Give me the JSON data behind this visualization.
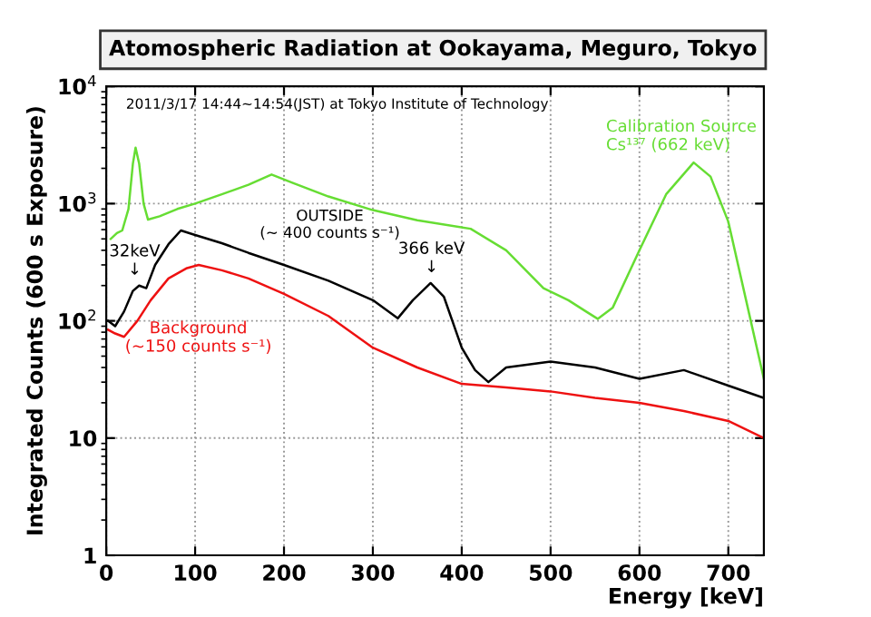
{
  "chart_data": {
    "type": "line",
    "title": "Atomospheric Radiation at Ookayama, Meguro, Tokyo",
    "xlabel": "Energy [keV]",
    "ylabel": "Integrated Counts (600 s Exposure)",
    "annotations": [
      "2011/3/17 14:44~14:54(JST) at Tokyo Institute of Technology",
      {
        "text": "32keV\n↓",
        "x": 32,
        "y": 200
      },
      {
        "text": "366 keV\n↓",
        "x": 366,
        "y": 210
      }
    ],
    "series": [
      {
        "name": "Calibration Source\nCs¹³⁷ (662 keV)",
        "color": "#66dd33",
        "x": [
          5,
          12,
          18,
          25,
          30,
          33,
          37,
          42,
          47,
          60,
          80,
          100,
          130,
          160,
          186,
          210,
          250,
          300,
          350,
          410,
          450,
          492,
          520,
          540,
          553,
          570,
          600,
          630,
          661,
          680,
          700,
          720,
          740
        ],
        "values": [
          500,
          560,
          590,
          900,
          2200,
          3000,
          2200,
          1000,
          730,
          780,
          900,
          1000,
          1200,
          1450,
          1770,
          1500,
          1150,
          880,
          720,
          610,
          400,
          190,
          150,
          120,
          104,
          130,
          400,
          1200,
          2240,
          1700,
          700,
          150,
          32
        ]
      },
      {
        "name": "OUTSIDE\n(~ 400 counts s⁻¹)",
        "color": "#000000",
        "x": [
          2,
          10,
          20,
          30,
          37,
          45,
          55,
          70,
          84,
          100,
          130,
          160,
          200,
          250,
          300,
          328,
          345,
          365,
          380,
          400,
          415,
          430,
          450,
          500,
          550,
          600,
          650,
          700,
          740
        ],
        "values": [
          100,
          90,
          120,
          180,
          200,
          190,
          300,
          450,
          590,
          540,
          460,
          380,
          300,
          220,
          150,
          105,
          150,
          210,
          160,
          59,
          38,
          30,
          40,
          45,
          40,
          32,
          38,
          28,
          22
        ]
      },
      {
        "name": "Background\n(~150 counts s⁻¹)",
        "color": "#ee1111",
        "x": [
          2,
          10,
          20,
          35,
          50,
          70,
          90,
          104,
          130,
          160,
          200,
          250,
          300,
          350,
          400,
          450,
          500,
          550,
          600,
          650,
          700,
          740
        ],
        "values": [
          84,
          78,
          73,
          100,
          150,
          230,
          280,
          300,
          270,
          230,
          170,
          110,
          59,
          40,
          29,
          27,
          25,
          22,
          20,
          17,
          14,
          10
        ]
      }
    ],
    "xlim": [
      0,
      740
    ],
    "xticks": [
      0,
      100,
      200,
      300,
      400,
      500,
      600,
      700
    ],
    "ylim": [
      1,
      10000
    ],
    "yticks": [
      1,
      10,
      {
        "value": 100,
        "label": "10$^{2}$"
      },
      {
        "value": 1000,
        "label": "10$^{3}$"
      },
      {
        "value": 10000,
        "label": "10$^{4}$"
      }
    ],
    "log": "y",
    "grid": true,
    "legend": false,
    "line_style": "solid",
    "marker": "none"
  }
}
